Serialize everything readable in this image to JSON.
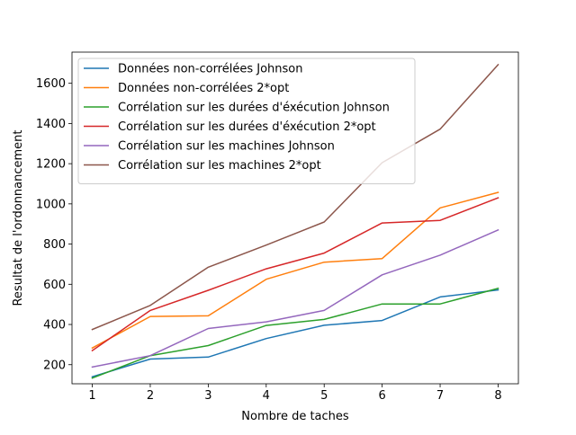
{
  "chart_data": {
    "type": "line",
    "xlabel": "Nombre de taches",
    "ylabel": "Resultat de l'ordonnancement",
    "x": [
      1,
      2,
      3,
      4,
      5,
      6,
      7,
      8
    ],
    "xticks": [
      "1",
      "2",
      "3",
      "4",
      "5",
      "6",
      "7",
      "8"
    ],
    "yticks": [
      "200",
      "400",
      "600",
      "800",
      "1000",
      "1200",
      "1400",
      "1600"
    ],
    "xlim": [
      0.65,
      8.35
    ],
    "ylim": [
      105,
      1755
    ],
    "grid": false,
    "legend_position": "upper-left",
    "series": [
      {
        "name": "Données non-corrélées Johnson",
        "color": "#1f77b4",
        "values": [
          140,
          228,
          238,
          330,
          396,
          420,
          537,
          572
        ]
      },
      {
        "name": "Données non-corrélées 2*opt",
        "color": "#ff7f0e",
        "values": [
          283,
          440,
          443,
          625,
          710,
          728,
          980,
          1057
        ]
      },
      {
        "name": "Corrélation sur les durées d'éxécution Johnson",
        "color": "#2ca02c",
        "values": [
          133,
          245,
          295,
          395,
          425,
          502,
          502,
          580
        ]
      },
      {
        "name": "Corrélation sur les durées d'éxécution 2*opt",
        "color": "#d62728",
        "values": [
          270,
          470,
          570,
          677,
          755,
          905,
          918,
          1030
        ]
      },
      {
        "name": "Corrélation sur les machines Johnson",
        "color": "#9467bd",
        "values": [
          188,
          245,
          380,
          413,
          470,
          647,
          745,
          870
        ]
      },
      {
        "name": "Corrélation sur les machines 2*opt",
        "color": "#8c564b",
        "values": [
          375,
          495,
          685,
          795,
          910,
          1205,
          1372,
          1693
        ]
      }
    ]
  }
}
